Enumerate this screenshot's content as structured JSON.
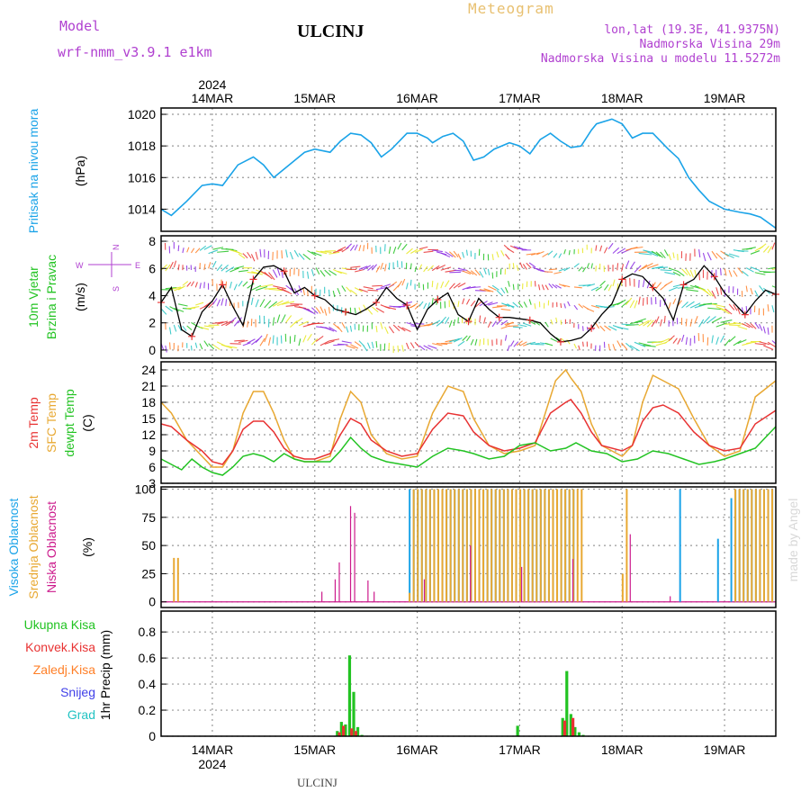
{
  "header": {
    "model_label": "Model",
    "model_name": "wrf-nmm_v3.9.1 e1km",
    "station": "ULCINJ",
    "meteogram": "Meteogram",
    "lonlat": "lon,lat (19.3E, 41.9375N)",
    "elevation": "Nadmorska Visina 29m",
    "model_elevation": "Nadmorska Visina u modelu 11.5272m",
    "footer_station": "ULCINJ",
    "credit": "made by Angel"
  },
  "time_axis": {
    "year": "2024",
    "labels": [
      "14MAR",
      "15MAR",
      "16MAR",
      "17MAR",
      "18MAR",
      "19MAR"
    ],
    "range_days": [
      13.5,
      19.5
    ]
  },
  "colors": {
    "pressure": "#1aa3e8",
    "t2m": "#e83232",
    "sfc": "#e8a832",
    "dew": "#22c322",
    "high_cloud": "#1aa3e8",
    "mid_cloud": "#e8a832",
    "low_cloud": "#cc1a8c",
    "total_precip": "#22c322",
    "conv_precip": "#e83232",
    "frozen_precip": "#ff7f27",
    "snow": "#4040e8",
    "grad": "#22c3c3",
    "wind_label": "#22c322",
    "compass": "#b040d0"
  },
  "chart_data": [
    {
      "id": "pressure",
      "type": "line",
      "ylabel": "Pritisak na nivou mora",
      "unit": "(hPa)",
      "ylim": [
        1012.6,
        1020.4
      ],
      "yticks": [
        1014,
        1016,
        1018,
        1020
      ],
      "grid": true,
      "series": [
        {
          "x": [
            13.5,
            13.6,
            13.75,
            13.9,
            14.0,
            14.1,
            14.25,
            14.4,
            14.5,
            14.6,
            14.75,
            14.9,
            15.0,
            15.15,
            15.25,
            15.35,
            15.45,
            15.55,
            15.65,
            15.75,
            15.9,
            16.0,
            16.1,
            16.15,
            16.25,
            16.35,
            16.45,
            16.55,
            16.65,
            16.75,
            16.9,
            17.0,
            17.1,
            17.2,
            17.3,
            17.4,
            17.5,
            17.6,
            17.7,
            17.75,
            17.9,
            18.0,
            18.1,
            18.2,
            18.3,
            18.45,
            18.55,
            18.65,
            18.75,
            18.85,
            19.0,
            19.15,
            19.25,
            19.35,
            19.5
          ],
          "values": [
            1014.0,
            1013.6,
            1014.5,
            1015.5,
            1015.6,
            1015.5,
            1016.8,
            1017.3,
            1016.8,
            1016.0,
            1016.8,
            1017.6,
            1017.8,
            1017.6,
            1018.3,
            1018.8,
            1018.7,
            1018.2,
            1017.3,
            1017.8,
            1018.8,
            1018.8,
            1018.5,
            1018.2,
            1018.6,
            1018.8,
            1018.3,
            1017.1,
            1017.3,
            1017.8,
            1018.2,
            1018.0,
            1017.5,
            1018.4,
            1018.8,
            1018.3,
            1017.9,
            1018.0,
            1019.0,
            1019.4,
            1019.7,
            1019.4,
            1018.5,
            1018.8,
            1018.8,
            1017.8,
            1017.2,
            1016.0,
            1015.2,
            1014.5,
            1014.0,
            1013.8,
            1013.7,
            1013.5,
            1012.8
          ]
        }
      ]
    },
    {
      "id": "wind",
      "type": "line",
      "ylabel": "10m Vjetar",
      "ylabel2": "Brzina i Pravac",
      "unit": "(m/s)",
      "ylim": [
        -0.6,
        8.4
      ],
      "yticks": [
        0,
        2,
        4,
        6,
        8
      ],
      "compass": [
        "N",
        "S",
        "E",
        "W"
      ],
      "series": [
        {
          "x": [
            13.5,
            13.6,
            13.7,
            13.8,
            13.9,
            14.0,
            14.1,
            14.2,
            14.3,
            14.4,
            14.5,
            14.6,
            14.7,
            14.8,
            14.9,
            15.0,
            15.1,
            15.2,
            15.3,
            15.4,
            15.5,
            15.6,
            15.7,
            15.8,
            15.9,
            16.0,
            16.1,
            16.2,
            16.3,
            16.4,
            16.5,
            16.6,
            16.7,
            16.8,
            16.9,
            17.0,
            17.1,
            17.2,
            17.3,
            17.4,
            17.5,
            17.6,
            17.7,
            17.8,
            17.9,
            18.0,
            18.1,
            18.2,
            18.3,
            18.4,
            18.5,
            18.6,
            18.7,
            18.8,
            18.9,
            19.0,
            19.1,
            19.2,
            19.3,
            19.4,
            19.5
          ],
          "values": [
            3.5,
            4.6,
            1.5,
            1.0,
            2.8,
            3.6,
            4.8,
            3.2,
            1.8,
            5.2,
            6.1,
            6.2,
            5.8,
            4.2,
            4.6,
            4.0,
            3.7,
            3.0,
            2.8,
            2.6,
            3.0,
            3.5,
            4.6,
            3.8,
            3.3,
            1.5,
            3.0,
            3.7,
            4.2,
            2.6,
            2.1,
            3.8,
            3.0,
            2.4,
            2.4,
            2.3,
            2.2,
            2.0,
            1.2,
            0.6,
            0.7,
            0.9,
            1.6,
            2.6,
            3.4,
            5.2,
            5.6,
            5.4,
            4.6,
            3.8,
            2.2,
            4.8,
            5.2,
            6.2,
            5.4,
            4.2,
            3.4,
            2.6,
            3.6,
            4.4,
            4.1
          ]
        }
      ]
    },
    {
      "id": "temperature",
      "type": "line",
      "ylabel": "2m Temp",
      "ylabel2": "SFC Temp",
      "ylabel3": "dewpt Temp",
      "unit": "(C)",
      "ylim": [
        3,
        25.5
      ],
      "yticks": [
        3,
        6,
        9,
        12,
        15,
        18,
        21,
        24
      ],
      "series": [
        {
          "name": "SFC Temp",
          "x": [
            13.5,
            13.6,
            13.75,
            13.9,
            14.0,
            14.1,
            14.2,
            14.3,
            14.4,
            14.5,
            14.6,
            14.7,
            14.8,
            14.9,
            15.0,
            15.15,
            15.25,
            15.35,
            15.45,
            15.55,
            15.7,
            15.85,
            16.0,
            16.15,
            16.3,
            16.45,
            16.55,
            16.7,
            16.85,
            17.0,
            17.15,
            17.3,
            17.35,
            17.45,
            17.5,
            17.6,
            17.7,
            17.8,
            18.0,
            18.1,
            18.2,
            18.3,
            18.4,
            18.55,
            18.7,
            18.85,
            19.0,
            19.15,
            19.3,
            19.5
          ],
          "values": [
            18.0,
            16.0,
            11.0,
            8.0,
            6.0,
            6.0,
            9.0,
            16.0,
            20.0,
            20.0,
            16.0,
            11.0,
            7.5,
            7.0,
            7.0,
            8.0,
            15.0,
            20.0,
            18.0,
            12.0,
            8.5,
            7.5,
            8.0,
            16.0,
            21.0,
            20.0,
            15.0,
            10.0,
            8.5,
            9.0,
            10.0,
            19.0,
            22.0,
            24.0,
            22.5,
            20.0,
            14.0,
            10.0,
            8.0,
            10.0,
            18.0,
            23.0,
            22.0,
            20.5,
            15.0,
            10.0,
            8.0,
            9.0,
            19.0,
            22.0
          ]
        },
        {
          "name": "2m Temp",
          "x": [
            13.5,
            13.6,
            13.75,
            13.9,
            14.0,
            14.1,
            14.2,
            14.3,
            14.4,
            14.5,
            14.6,
            14.7,
            14.8,
            14.9,
            15.0,
            15.15,
            15.25,
            15.35,
            15.45,
            15.55,
            15.7,
            15.85,
            16.0,
            16.15,
            16.3,
            16.45,
            16.55,
            16.7,
            16.85,
            17.0,
            17.15,
            17.3,
            17.45,
            17.5,
            17.6,
            17.7,
            17.8,
            18.0,
            18.1,
            18.2,
            18.3,
            18.4,
            18.55,
            18.7,
            18.85,
            19.0,
            19.15,
            19.3,
            19.5
          ],
          "values": [
            14.0,
            13.5,
            11.0,
            9.0,
            7.0,
            6.5,
            9.0,
            13.0,
            14.5,
            14.5,
            12.5,
            9.5,
            8.0,
            7.5,
            7.5,
            8.5,
            12.0,
            15.0,
            14.0,
            11.0,
            9.0,
            8.0,
            8.5,
            13.0,
            16.0,
            15.5,
            12.5,
            10.0,
            9.0,
            9.5,
            10.5,
            16.0,
            18.0,
            18.5,
            16.0,
            12.5,
            10.0,
            9.0,
            10.0,
            14.5,
            17.0,
            17.5,
            16.0,
            12.5,
            10.0,
            9.0,
            9.5,
            14.0,
            16.5
          ]
        },
        {
          "name": "dewpt Temp",
          "x": [
            13.5,
            13.6,
            13.7,
            13.8,
            13.9,
            14.0,
            14.1,
            14.2,
            14.3,
            14.4,
            14.5,
            14.6,
            14.7,
            14.8,
            14.9,
            15.0,
            15.15,
            15.25,
            15.35,
            15.45,
            15.55,
            15.7,
            15.85,
            16.0,
            16.15,
            16.3,
            16.45,
            16.55,
            16.7,
            16.85,
            17.0,
            17.15,
            17.3,
            17.45,
            17.55,
            17.7,
            17.85,
            18.0,
            18.15,
            18.3,
            18.45,
            18.6,
            18.75,
            18.9,
            19.0,
            19.15,
            19.3,
            19.5
          ],
          "values": [
            7.5,
            6.5,
            5.5,
            7.5,
            6.0,
            5.0,
            4.5,
            6.0,
            8.0,
            8.5,
            8.0,
            7.0,
            8.5,
            7.5,
            7.0,
            7.0,
            7.0,
            9.0,
            11.5,
            9.5,
            8.0,
            7.0,
            6.5,
            6.0,
            8.0,
            9.5,
            9.0,
            8.5,
            7.5,
            8.0,
            10.0,
            10.5,
            9.0,
            9.5,
            10.5,
            9.0,
            8.5,
            7.0,
            7.5,
            9.0,
            8.5,
            7.5,
            6.5,
            7.0,
            7.5,
            8.5,
            9.5,
            13.5
          ]
        }
      ]
    },
    {
      "id": "clouds",
      "type": "bar",
      "ylabel": "Visoka Oblacnost",
      "ylabel2": "Srednja Oblacnost",
      "ylabel3": "Niska Oblacnost",
      "unit": "(%)",
      "ylim": [
        -5,
        102
      ],
      "yticks": [
        0,
        25,
        50,
        75,
        100
      ],
      "series": [
        {
          "name": "Visoka Oblacnost",
          "x": [
            15.94,
            15.98,
            16.02,
            16.06,
            16.1,
            16.14,
            16.18,
            16.22,
            16.26,
            16.3,
            16.34,
            16.38,
            16.42,
            16.46,
            16.5,
            16.54,
            16.58,
            16.62,
            16.66,
            16.7,
            16.74,
            16.78,
            16.82,
            16.86,
            16.9,
            16.94,
            16.98,
            17.02,
            17.06,
            17.1,
            17.14,
            17.18,
            17.22,
            17.26,
            17.3,
            17.34,
            17.38,
            17.42,
            17.46,
            17.5,
            17.54,
            18.58,
            18.95,
            19.08,
            19.12,
            19.16,
            19.2,
            19.24,
            19.28,
            19.32,
            19.36,
            19.4,
            19.44,
            19.48
          ],
          "values": [
            100,
            100,
            100,
            100,
            100,
            100,
            100,
            100,
            100,
            100,
            100,
            100,
            100,
            100,
            100,
            100,
            100,
            100,
            100,
            100,
            100,
            100,
            100,
            100,
            100,
            100,
            100,
            100,
            100,
            100,
            100,
            100,
            100,
            100,
            100,
            100,
            100,
            100,
            100,
            100,
            100,
            100,
            56,
            92,
            100,
            100,
            100,
            100,
            100,
            100,
            100,
            100,
            100,
            100
          ]
        },
        {
          "name": "Srednja Oblacnost",
          "x": [
            13.62,
            13.66,
            15.92,
            15.96,
            16.0,
            16.04,
            16.08,
            16.12,
            16.16,
            16.2,
            16.24,
            16.28,
            16.32,
            16.36,
            16.4,
            16.44,
            16.48,
            16.52,
            16.56,
            16.6,
            16.64,
            16.68,
            16.72,
            16.76,
            16.8,
            16.84,
            16.88,
            16.92,
            16.96,
            17.0,
            17.04,
            17.08,
            17.12,
            17.16,
            17.2,
            17.24,
            17.28,
            17.32,
            17.36,
            17.4,
            17.44,
            17.48,
            17.52,
            17.56,
            17.6,
            18.0,
            18.04,
            19.1,
            19.14,
            19.18,
            19.22,
            19.26,
            19.3,
            19.34,
            19.38,
            19.42,
            19.46
          ],
          "values": [
            39,
            39,
            8,
            100,
            100,
            100,
            100,
            100,
            100,
            100,
            100,
            100,
            100,
            100,
            100,
            100,
            100,
            100,
            100,
            100,
            100,
            100,
            100,
            100,
            100,
            100,
            100,
            100,
            100,
            100,
            100,
            100,
            100,
            100,
            100,
            100,
            100,
            100,
            100,
            100,
            100,
            100,
            100,
            100,
            100,
            25,
            100,
            100,
            100,
            100,
            100,
            100,
            100,
            100,
            100,
            100,
            100
          ]
        },
        {
          "name": "Niska Oblacnost",
          "x": [
            15.05,
            15.18,
            15.22,
            15.33,
            15.37,
            15.5,
            15.56,
            16.05,
            16.5,
            17.0,
            17.5,
            18.06,
            18.45
          ],
          "values": [
            9,
            20,
            35,
            85,
            79,
            19,
            9,
            20,
            50,
            31,
            38,
            60,
            5
          ]
        }
      ]
    },
    {
      "id": "precip",
      "type": "bar",
      "ylabel": "1hr Precip",
      "unit": "(mm)",
      "ylim": [
        0,
        0.96
      ],
      "yticks": [
        0,
        0.2,
        0.4,
        0.6,
        0.8
      ],
      "legend": [
        "Ukupna Kisa",
        "Konvek.Kisa",
        "Zaledj.Kisa",
        "Snijeg",
        "Grad"
      ],
      "series": [
        {
          "name": "Ukupna Kisa",
          "x": [
            15.22,
            15.26,
            15.3,
            15.34,
            15.38,
            15.42,
            15.46,
            16.98,
            17.42,
            17.46,
            17.5,
            17.54,
            17.58,
            17.62
          ],
          "values": [
            0.04,
            0.11,
            0.09,
            0.62,
            0.34,
            0.07,
            0.01,
            0.08,
            0.14,
            0.5,
            0.17,
            0.07,
            0.03,
            0.01
          ]
        },
        {
          "name": "Konvek.Kisa",
          "x": [
            15.24,
            15.28,
            15.36,
            15.4,
            17.44,
            17.52
          ],
          "values": [
            0.03,
            0.08,
            0.06,
            0.04,
            0.12,
            0.14
          ]
        }
      ]
    }
  ]
}
